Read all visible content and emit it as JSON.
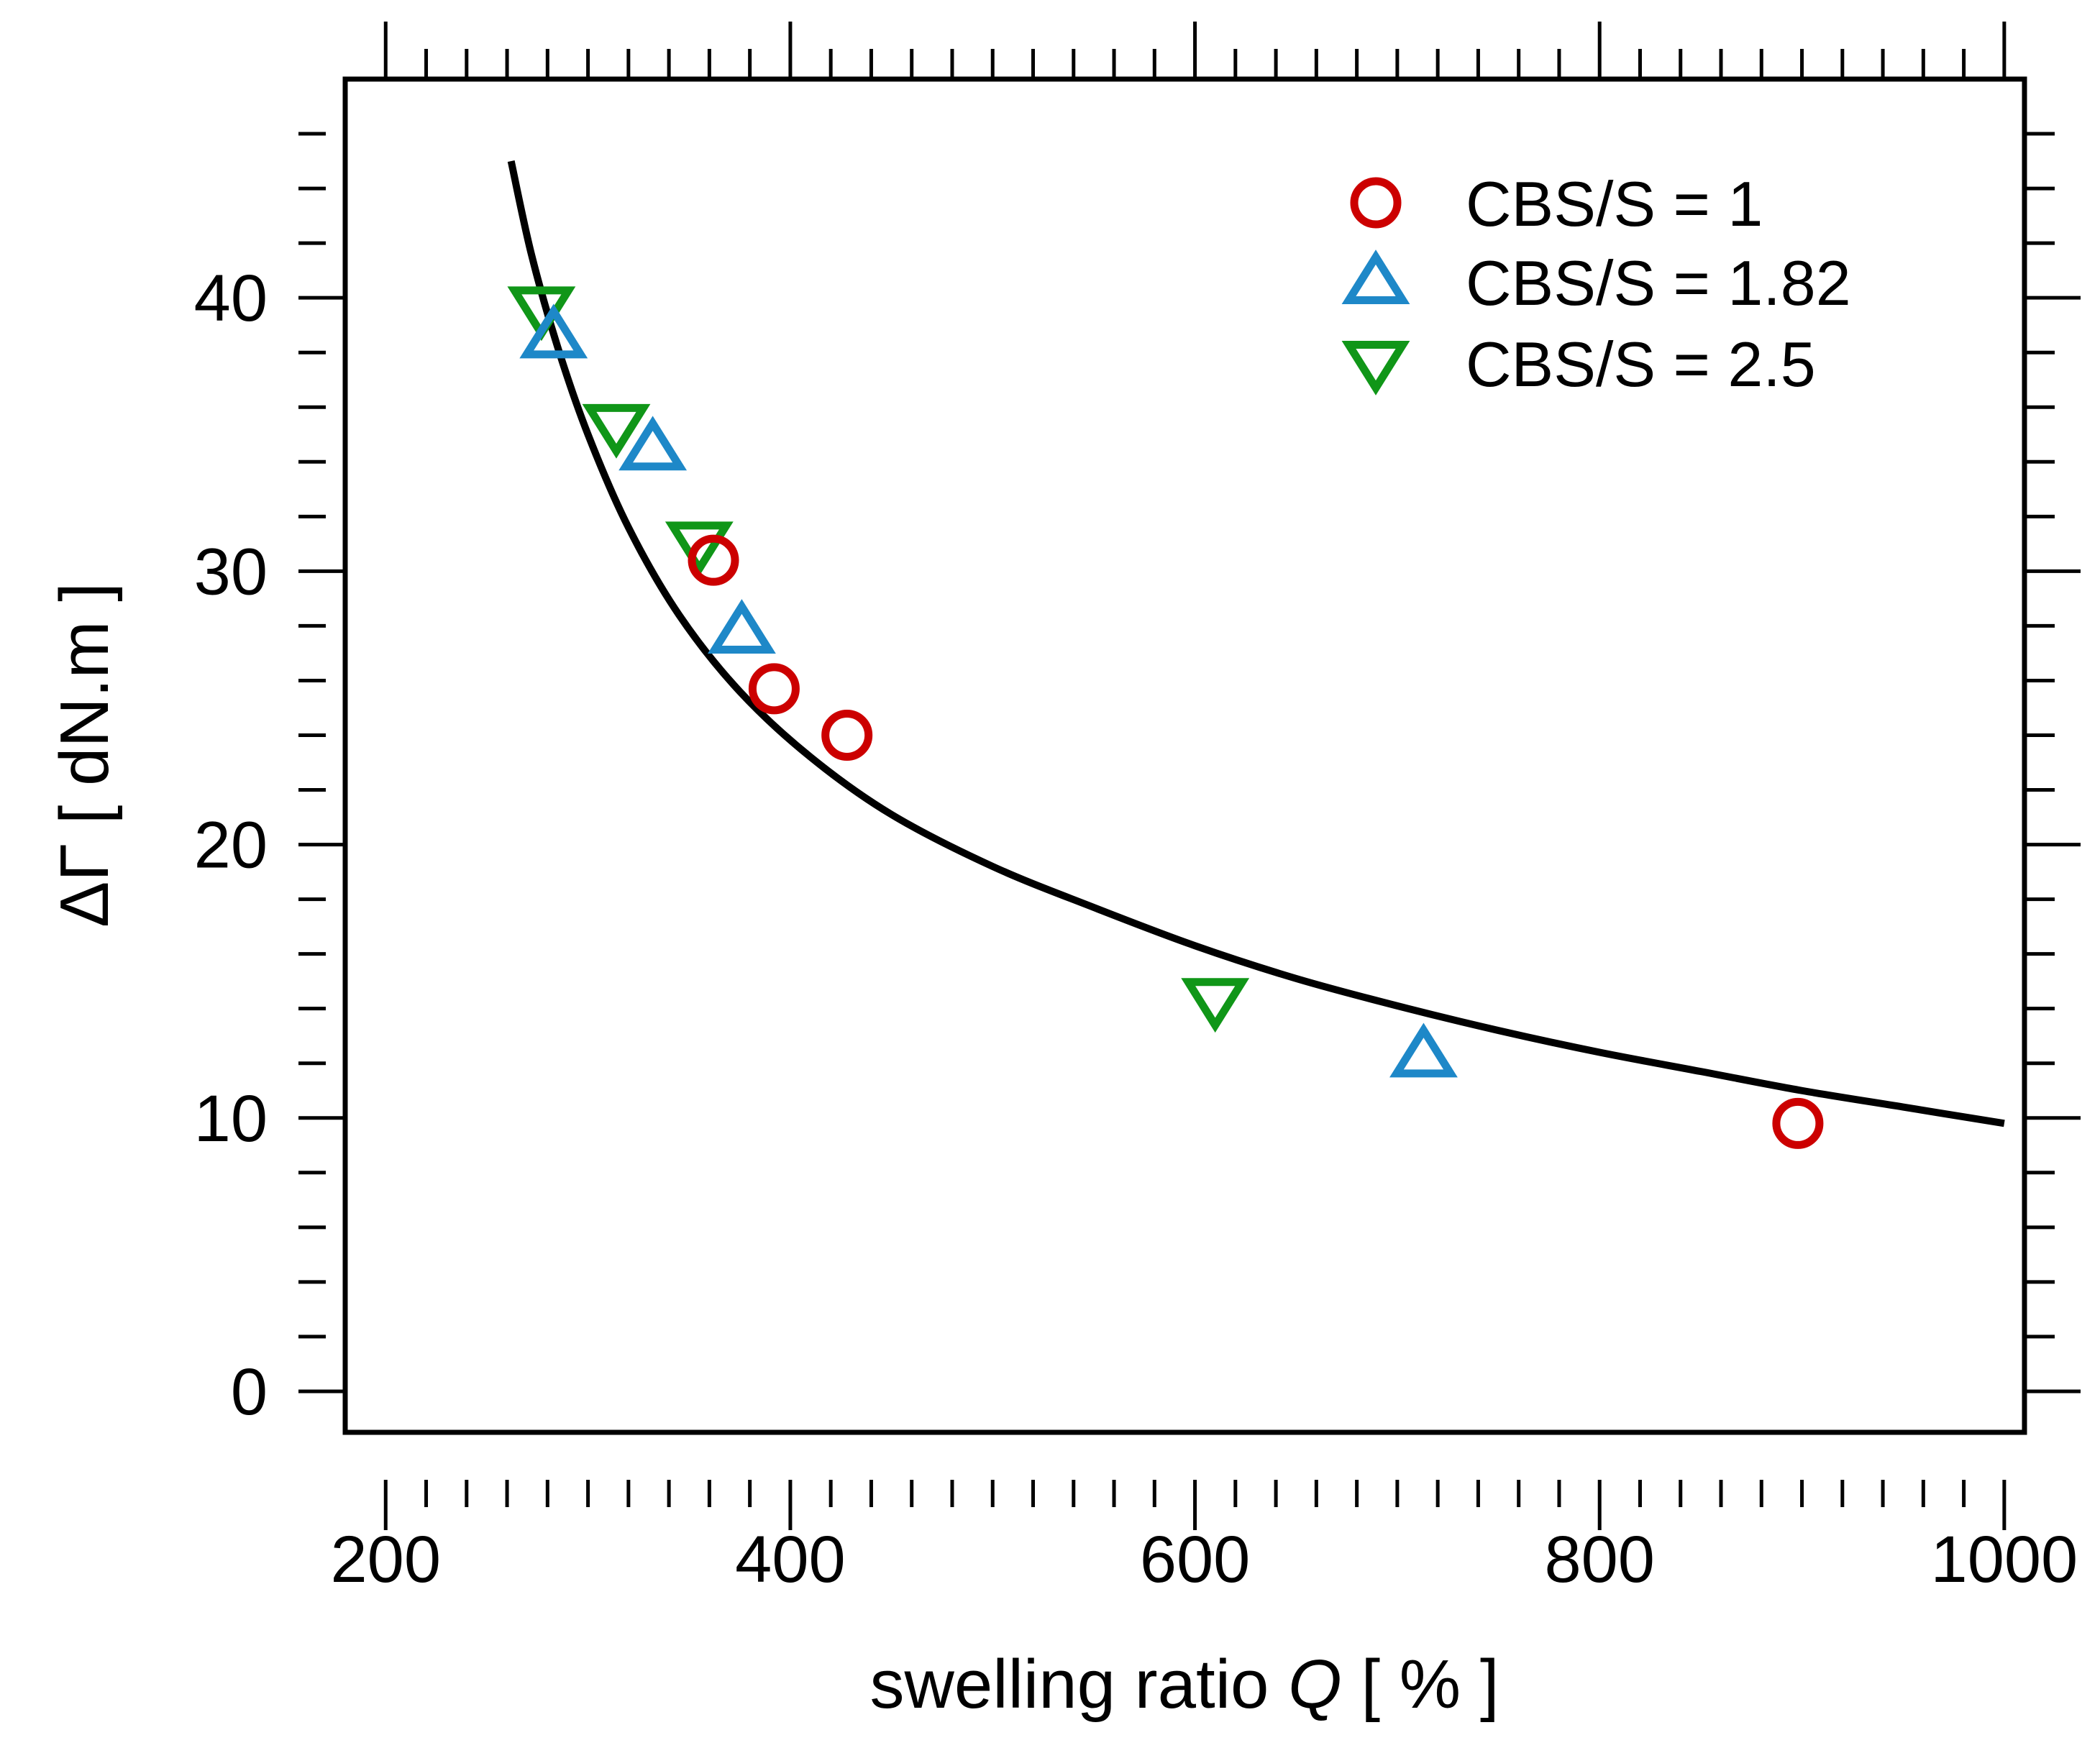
{
  "chart_data": {
    "type": "scatter",
    "xlabel_prefix": "swelling ratio",
    "xlabel_var": "Q",
    "xlabel_unit": "[ % ]",
    "ylabel_symbol": "ΔΓ",
    "ylabel_unit": "[ dN.m ]",
    "xlim": [
      180,
      1010
    ],
    "ylim": [
      -1.5,
      48
    ],
    "x_ticks": [
      200,
      400,
      600,
      800,
      1000
    ],
    "x_tick_labels": [
      "200",
      "400",
      "600",
      "800",
      "1000"
    ],
    "x_minor_step": 20,
    "y_ticks": [
      0,
      10,
      20,
      30,
      40
    ],
    "y_tick_labels": [
      "0",
      "10",
      "20",
      "30",
      "40"
    ],
    "y_minor_step": 2,
    "legend_position": "top-right",
    "series": [
      {
        "name": "CBS/S = 1",
        "marker": "circle",
        "color": "#cc0000",
        "points": [
          {
            "x": 362,
            "y": 30.4
          },
          {
            "x": 392,
            "y": 25.7
          },
          {
            "x": 428,
            "y": 24.0
          },
          {
            "x": 898,
            "y": 9.8
          }
        ]
      },
      {
        "name": "CBS/S = 1.82",
        "marker": "triangle-up",
        "color": "#1e88c8",
        "points": [
          {
            "x": 283,
            "y": 38.6
          },
          {
            "x": 332,
            "y": 34.5
          },
          {
            "x": 376,
            "y": 27.8
          },
          {
            "x": 713,
            "y": 12.3
          }
        ]
      },
      {
        "name": "CBS/S = 2.5",
        "marker": "triangle-down",
        "color": "#109618",
        "points": [
          {
            "x": 277,
            "y": 39.6
          },
          {
            "x": 314,
            "y": 35.3
          },
          {
            "x": 355,
            "y": 31.0
          },
          {
            "x": 610,
            "y": 14.3
          }
        ]
      }
    ],
    "fit_curve": {
      "name": "fit",
      "color": "#000000",
      "x": [
        262,
        272,
        285,
        300,
        320,
        345,
        375,
        410,
        450,
        500,
        550,
        600,
        650,
        700,
        750,
        800,
        850,
        900,
        950,
        1000
      ],
      "y": [
        45.0,
        41.6,
        38.2,
        35.0,
        31.6,
        28.4,
        25.6,
        23.2,
        21.1,
        19.2,
        17.7,
        16.3,
        15.1,
        14.1,
        13.2,
        12.4,
        11.7,
        11.0,
        10.4,
        9.8
      ]
    }
  }
}
